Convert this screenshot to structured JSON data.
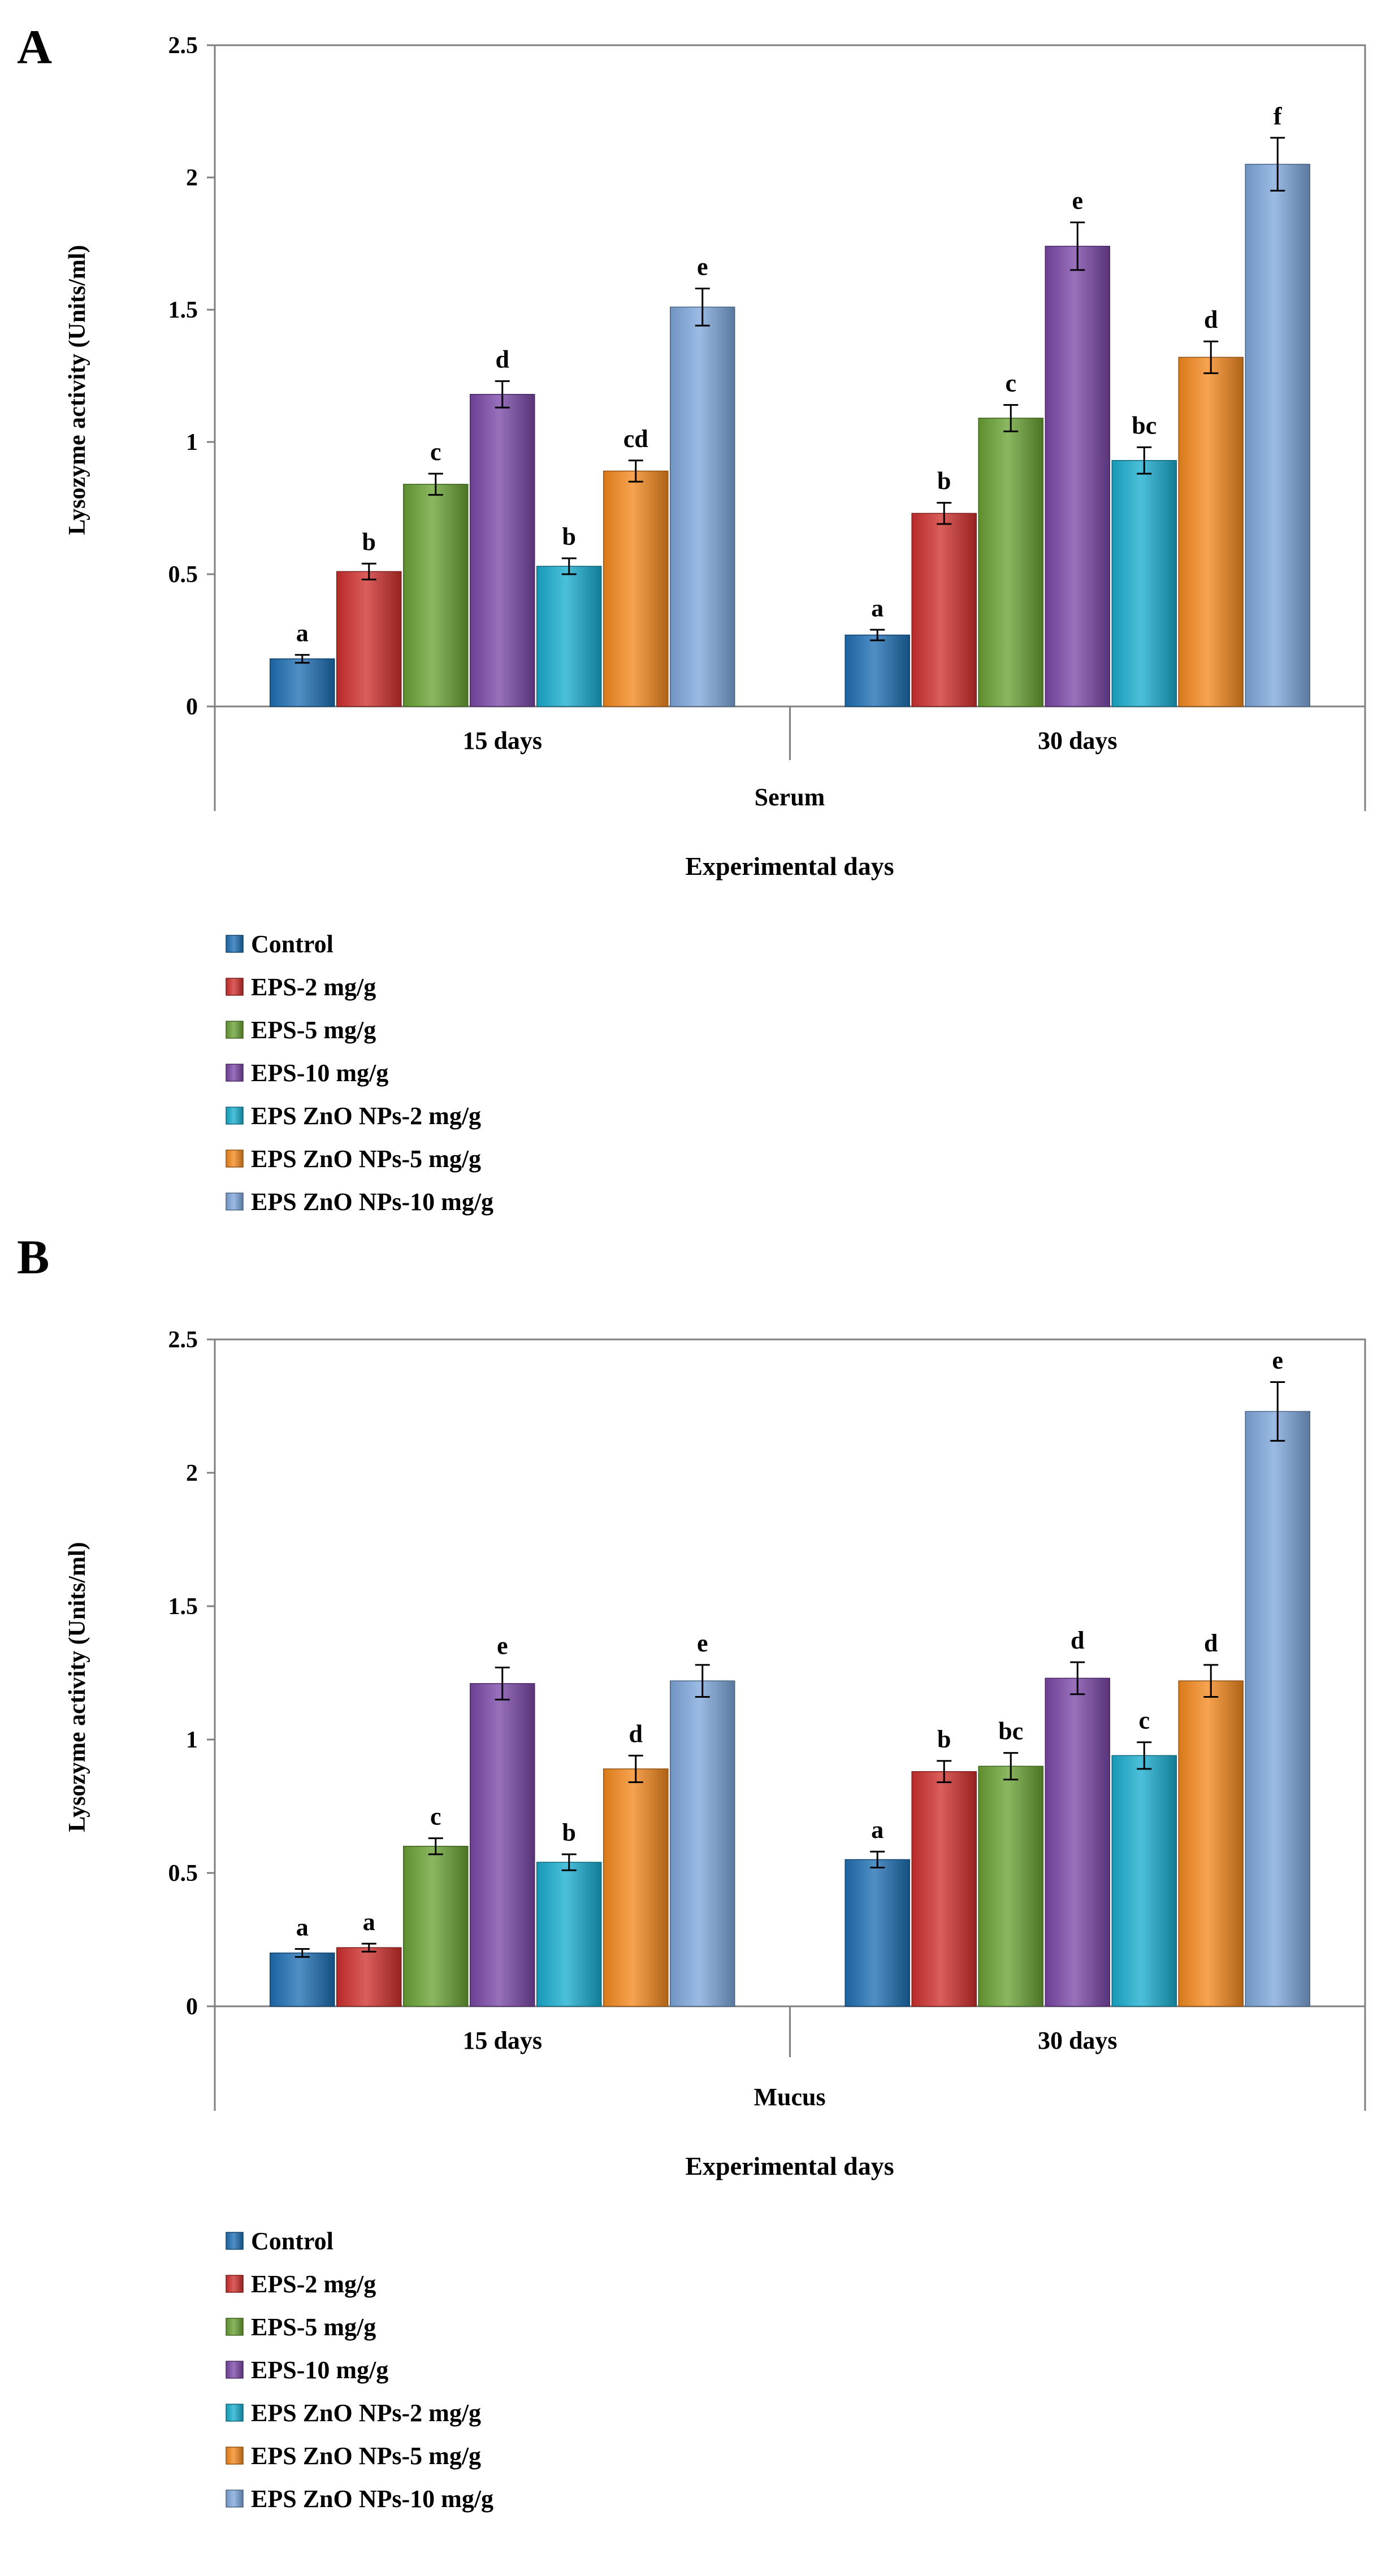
{
  "figure": {
    "series_names": [
      "Control",
      "EPS-2 mg/g",
      "EPS-5 mg/g",
      "EPS-10 mg/g",
      "EPS ZnO NPs-2 mg/g",
      "EPS ZnO NPs-5 mg/g",
      "EPS ZnO NPs-10 mg/g"
    ],
    "colors": [
      "#1f6fb5",
      "#d0302e",
      "#6aa334",
      "#7b48a8",
      "#1aaed0",
      "#f5891e",
      "#7fa8dc"
    ]
  },
  "chart_data": [
    {
      "panel_label": "A",
      "type": "bar",
      "title": "",
      "ylabel": "Lysozyme activity (Units/ml)",
      "xlabel": "Experimental days",
      "group_label": "Serum",
      "ylim": [
        0,
        2.5
      ],
      "yticks": [
        "0",
        "0.5",
        "1",
        "1.5",
        "2",
        "2.5"
      ],
      "categories": [
        "15 days",
        "30 days"
      ],
      "series": [
        {
          "name": "Control",
          "values": [
            0.18,
            0.27
          ],
          "errors": [
            0.015,
            0.02
          ],
          "letters": [
            "a",
            "a"
          ]
        },
        {
          "name": "EPS-2 mg/g",
          "values": [
            0.51,
            0.73
          ],
          "errors": [
            0.03,
            0.04
          ],
          "letters": [
            "b",
            "b"
          ]
        },
        {
          "name": "EPS-5 mg/g",
          "values": [
            0.84,
            1.09
          ],
          "errors": [
            0.04,
            0.05
          ],
          "letters": [
            "c",
            "c"
          ]
        },
        {
          "name": "EPS-10 mg/g",
          "values": [
            1.18,
            1.74
          ],
          "errors": [
            0.05,
            0.09
          ],
          "letters": [
            "d",
            "e"
          ]
        },
        {
          "name": "EPS ZnO NPs-2 mg/g",
          "values": [
            0.53,
            0.93
          ],
          "errors": [
            0.03,
            0.05
          ],
          "letters": [
            "b",
            "bc"
          ]
        },
        {
          "name": "EPS ZnO NPs-5 mg/g",
          "values": [
            0.89,
            1.32
          ],
          "errors": [
            0.04,
            0.06
          ],
          "letters": [
            "cd",
            "d"
          ]
        },
        {
          "name": "EPS ZnO NPs-10 mg/g",
          "values": [
            1.51,
            2.05
          ],
          "errors": [
            0.07,
            0.1
          ],
          "letters": [
            "e",
            "f"
          ]
        }
      ],
      "legend": "below"
    },
    {
      "panel_label": "B",
      "type": "bar",
      "title": "",
      "ylabel": "Lysozyme activity (Units/ml)",
      "xlabel": "Experimental days",
      "group_label": "Mucus",
      "ylim": [
        0,
        2.5
      ],
      "yticks": [
        "0",
        "0.5",
        "1",
        "1.5",
        "2",
        "2.5"
      ],
      "categories": [
        "15 days",
        "30 days"
      ],
      "series": [
        {
          "name": "Control",
          "values": [
            0.2,
            0.55
          ],
          "errors": [
            0.015,
            0.03
          ],
          "letters": [
            "a",
            "a"
          ]
        },
        {
          "name": "EPS-2 mg/g",
          "values": [
            0.22,
            0.88
          ],
          "errors": [
            0.015,
            0.04
          ],
          "letters": [
            "a",
            "b"
          ]
        },
        {
          "name": "EPS-5 mg/g",
          "values": [
            0.6,
            0.9
          ],
          "errors": [
            0.03,
            0.05
          ],
          "letters": [
            "c",
            "bc"
          ]
        },
        {
          "name": "EPS-10 mg/g",
          "values": [
            1.21,
            1.23
          ],
          "errors": [
            0.06,
            0.06
          ],
          "letters": [
            "e",
            "d"
          ]
        },
        {
          "name": "EPS ZnO NPs-2 mg/g",
          "values": [
            0.54,
            0.94
          ],
          "errors": [
            0.03,
            0.05
          ],
          "letters": [
            "b",
            "c"
          ]
        },
        {
          "name": "EPS ZnO NPs-5 mg/g",
          "values": [
            0.89,
            1.22
          ],
          "errors": [
            0.05,
            0.06
          ],
          "letters": [
            "d",
            "d"
          ]
        },
        {
          "name": "EPS ZnO NPs-10 mg/g",
          "values": [
            1.22,
            2.23
          ],
          "errors": [
            0.06,
            0.11
          ],
          "letters": [
            "e",
            "e"
          ]
        }
      ],
      "legend": "below"
    }
  ]
}
